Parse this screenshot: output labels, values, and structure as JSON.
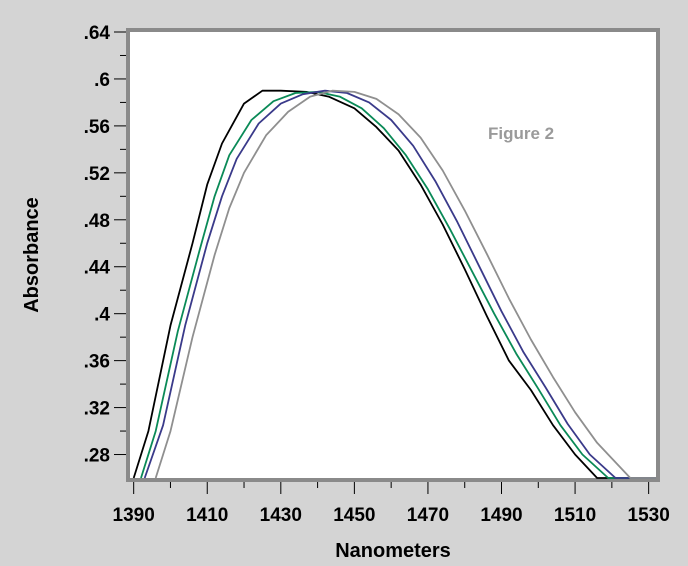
{
  "chart_data": {
    "type": "line",
    "xlabel": "Nanometers",
    "ylabel": "Absorbance",
    "annotation": "Figure 2",
    "xlim": [
      1389,
      1532
    ],
    "ylim": [
      0.26,
      0.64
    ],
    "x_ticks": [
      "1390",
      "1410",
      "1430",
      "1450",
      "1470",
      "1490",
      "1510",
      "1530"
    ],
    "y_ticks": [
      ".28",
      ".32",
      ".36",
      ".4",
      ".44",
      ".48",
      ".52",
      ".56",
      ".6",
      ".64"
    ],
    "grid": false,
    "series": [
      {
        "color": "#000000",
        "x": [
          1390,
          1394,
          1400,
          1406,
          1410,
          1414,
          1420,
          1425,
          1430,
          1437,
          1443,
          1450,
          1456,
          1462,
          1468,
          1474,
          1480,
          1486,
          1492,
          1498,
          1504,
          1510,
          1516,
          1532
        ],
        "y": [
          0.26,
          0.3,
          0.39,
          0.46,
          0.51,
          0.545,
          0.579,
          0.59,
          0.59,
          0.589,
          0.585,
          0.575,
          0.559,
          0.539,
          0.51,
          0.476,
          0.438,
          0.398,
          0.36,
          0.335,
          0.305,
          0.28,
          0.26,
          0.26
        ]
      },
      {
        "color": "#0a8a57",
        "x": [
          1392,
          1396,
          1402,
          1408,
          1412,
          1416,
          1422,
          1428,
          1434,
          1440,
          1446,
          1452,
          1458,
          1464,
          1470,
          1476,
          1482,
          1488,
          1494,
          1500,
          1506,
          1512,
          1519,
          1532
        ],
        "y": [
          0.26,
          0.3,
          0.385,
          0.455,
          0.5,
          0.535,
          0.565,
          0.581,
          0.588,
          0.589,
          0.585,
          0.575,
          0.558,
          0.535,
          0.506,
          0.472,
          0.436,
          0.4,
          0.366,
          0.336,
          0.305,
          0.28,
          0.26,
          0.26
        ]
      },
      {
        "color": "#3a3a8a",
        "x": [
          1393,
          1398,
          1404,
          1410,
          1414,
          1418,
          1424,
          1430,
          1436,
          1442,
          1448,
          1454,
          1460,
          1466,
          1472,
          1478,
          1484,
          1490,
          1496,
          1502,
          1508,
          1514,
          1521,
          1532
        ],
        "y": [
          0.26,
          0.305,
          0.39,
          0.46,
          0.5,
          0.532,
          0.562,
          0.579,
          0.587,
          0.59,
          0.588,
          0.58,
          0.565,
          0.543,
          0.513,
          0.478,
          0.44,
          0.402,
          0.367,
          0.337,
          0.306,
          0.28,
          0.26,
          0.26
        ]
      },
      {
        "color": "#8f8f8f",
        "x": [
          1396,
          1400,
          1406,
          1412,
          1416,
          1420,
          1426,
          1432,
          1438,
          1444,
          1450,
          1456,
          1462,
          1468,
          1474,
          1480,
          1486,
          1492,
          1498,
          1504,
          1510,
          1516,
          1525,
          1532
        ],
        "y": [
          0.26,
          0.3,
          0.38,
          0.45,
          0.49,
          0.52,
          0.552,
          0.572,
          0.585,
          0.59,
          0.589,
          0.583,
          0.57,
          0.55,
          0.522,
          0.488,
          0.451,
          0.413,
          0.378,
          0.346,
          0.316,
          0.29,
          0.26,
          0.26
        ]
      }
    ]
  }
}
